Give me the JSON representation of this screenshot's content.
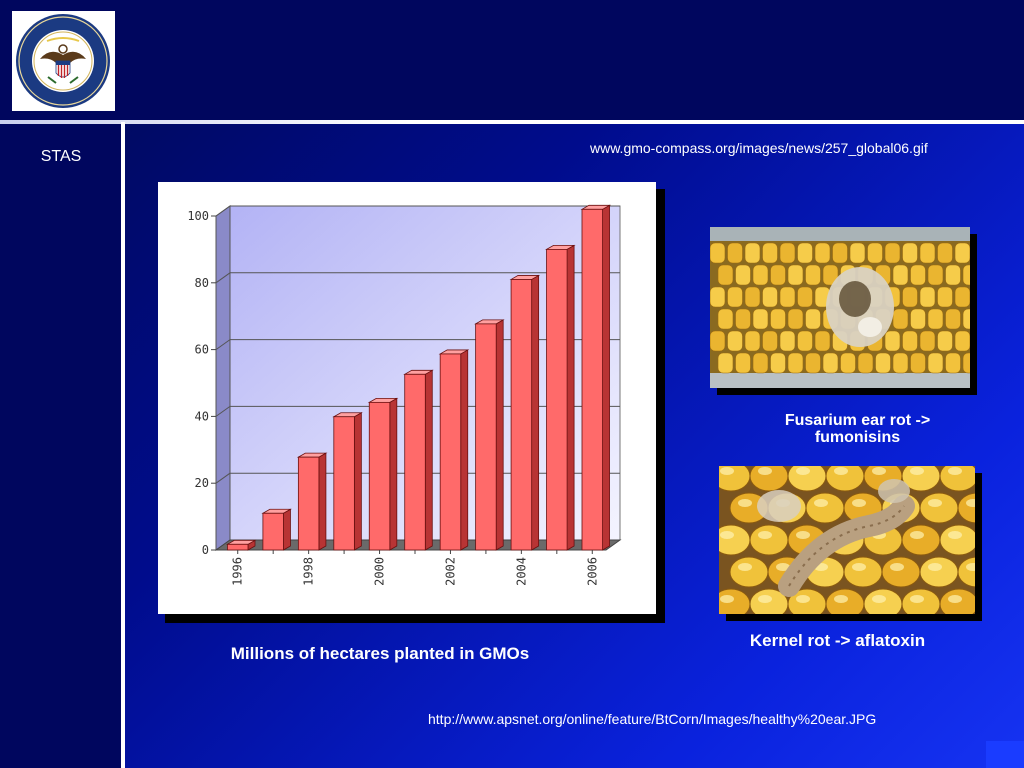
{
  "sidebar": {
    "label": "STAS"
  },
  "sources": {
    "top_url": "www.gmo-compass.org/images/news/257_global06.gif",
    "bottom_url": "http://www.apsnet.org/online/feature/BtCorn/Images/healthy%20ear.JPG"
  },
  "captions": {
    "chart": "Millions of hectares planted in GMOs",
    "fusarium_line1": "Fusarium ear rot ->",
    "fusarium_line2": "fumonisins",
    "kernel": "Kernel rot -> aflatoxin"
  },
  "images": [
    {
      "name": "fusarium-ear-rot-photo",
      "icon": "corn-ear-photo"
    },
    {
      "name": "kernel-rot-photo",
      "icon": "corn-kernels-larva-photo"
    },
    {
      "name": "department-of-state-seal",
      "icon": "seal-logo"
    }
  ],
  "chart_data": {
    "type": "bar",
    "categories": [
      "1996",
      "1997",
      "1998",
      "1999",
      "2000",
      "2001",
      "2002",
      "2003",
      "2004",
      "2005",
      "2006"
    ],
    "tick_labels_x": [
      "1996",
      "1998",
      "2000",
      "2002",
      "2004",
      "2006"
    ],
    "values": [
      1.7,
      11,
      27.8,
      39.9,
      44.2,
      52.6,
      58.7,
      67.7,
      81.0,
      90.0,
      102.0
    ],
    "y_ticks": [
      "0",
      "20",
      "40",
      "60",
      "80",
      "100"
    ],
    "ylim": [
      0,
      100
    ],
    "grid": true,
    "bar_color": "#ff6a6a"
  }
}
